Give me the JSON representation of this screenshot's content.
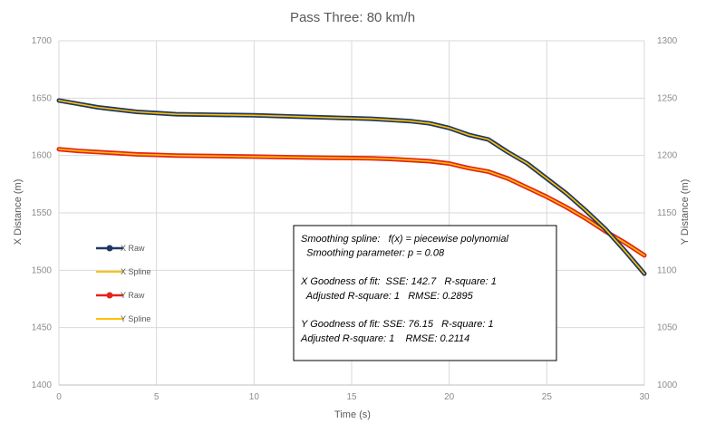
{
  "chart_data": {
    "type": "line",
    "title": "Pass Three: 80 km/h",
    "xlabel": "Time (s)",
    "ylabel": "X Distance (m)",
    "y2label": "Y Distance (m)",
    "xlim": [
      0,
      30
    ],
    "ylim": [
      1400,
      1700
    ],
    "y2lim": [
      1000,
      1300
    ],
    "x_ticks": [
      "0",
      "5",
      "10",
      "15",
      "20",
      "25",
      "30"
    ],
    "y_ticks": [
      "1400",
      "1450",
      "1500",
      "1550",
      "1600",
      "1650",
      "1700"
    ],
    "y2_ticks": [
      "1000",
      "1050",
      "1100",
      "1150",
      "1200",
      "1250",
      "1300"
    ],
    "grid": true,
    "legend_position": "left",
    "series": [
      {
        "name": "X Raw",
        "axis": "left",
        "color": "#1f3864",
        "marker": true,
        "x": [
          0,
          1,
          2,
          3,
          4,
          5,
          6,
          8,
          10,
          12,
          14,
          16,
          17,
          18,
          19,
          20,
          21,
          22,
          23,
          24,
          25,
          26,
          27,
          28,
          29,
          30
        ],
        "y": [
          1648,
          1645,
          1642,
          1640,
          1638,
          1637,
          1636,
          1635.5,
          1635,
          1634,
          1633,
          1632,
          1631,
          1630,
          1628,
          1624,
          1618,
          1614,
          1603,
          1593,
          1580,
          1567,
          1552,
          1536,
          1517,
          1497
        ]
      },
      {
        "name": "X Spline",
        "axis": "left",
        "color": "#ffc000",
        "marker": false,
        "x": [
          0,
          1,
          2,
          3,
          4,
          5,
          6,
          8,
          10,
          12,
          14,
          16,
          17,
          18,
          19,
          20,
          21,
          22,
          23,
          24,
          25,
          26,
          27,
          28,
          29,
          30
        ],
        "y": [
          1648,
          1645,
          1642,
          1640,
          1638,
          1637,
          1636,
          1635.5,
          1635,
          1634,
          1633,
          1632,
          1631,
          1630,
          1628,
          1624,
          1618,
          1614,
          1603,
          1593,
          1580,
          1567,
          1552,
          1536,
          1517,
          1497
        ]
      },
      {
        "name": "Y Raw",
        "axis": "right",
        "color": "#e3241b",
        "marker": true,
        "x": [
          0,
          1,
          2,
          3,
          4,
          5,
          6,
          8,
          10,
          12,
          14,
          16,
          17,
          18,
          19,
          20,
          21,
          22,
          23,
          24,
          25,
          26,
          27,
          28,
          29,
          30
        ],
        "y": [
          1205.5,
          1204,
          1203,
          1202,
          1201,
          1200.5,
          1200,
          1199.5,
          1199,
          1198.5,
          1198,
          1197.5,
          1197,
          1196,
          1195,
          1193,
          1189,
          1186,
          1180,
          1172,
          1164,
          1155,
          1145,
          1134,
          1124,
          1113
        ]
      },
      {
        "name": "Y Spline",
        "axis": "right",
        "color": "#ffc000",
        "marker": false,
        "x": [
          0,
          1,
          2,
          3,
          4,
          5,
          6,
          8,
          10,
          12,
          14,
          16,
          17,
          18,
          19,
          20,
          21,
          22,
          23,
          24,
          25,
          26,
          27,
          28,
          29,
          30
        ],
        "y": [
          1205.5,
          1204,
          1203,
          1202,
          1201,
          1200.5,
          1200,
          1199.5,
          1199,
          1198.5,
          1198,
          1197.5,
          1197,
          1196,
          1195,
          1193,
          1189,
          1186,
          1180,
          1172,
          1164,
          1155,
          1145,
          1134,
          1124,
          1113
        ]
      }
    ],
    "annotation": [
      "Smoothing spline:   f(x) = piecewise polynomial",
      "  Smoothing parameter: p = 0.08",
      "",
      "X Goodness of fit:  SSE: 142.7   R-square: 1",
      "  Adjusted R-square: 1   RMSE: 0.2895",
      "",
      "Y Goodness of fit: SSE: 76.15   R-square: 1",
      "Adjusted R-square: 1    RMSE: 0.2114"
    ]
  }
}
